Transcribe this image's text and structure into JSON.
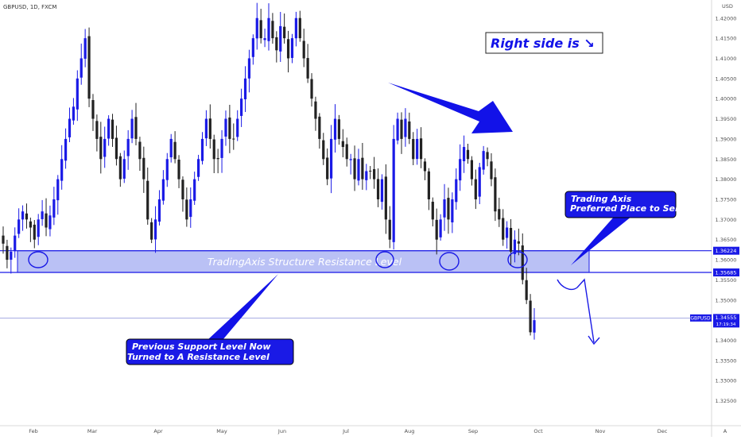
{
  "header": {
    "symbol_text": "GBPUSD, 1D, FXCM",
    "currency": "USD"
  },
  "chart_data": {
    "type": "candlestick",
    "title": "GBPUSD, 1D, FXCM",
    "y_axis": {
      "ylim": [
        1.319,
        1.4235
      ],
      "ticks": [
        "1.42000",
        "1.41500",
        "1.41000",
        "1.40500",
        "1.40000",
        "1.39500",
        "1.39000",
        "1.38500",
        "1.38000",
        "1.37500",
        "1.37000",
        "1.36500",
        "1.36000",
        "1.35500",
        "1.35000",
        "1.34500",
        "1.34000",
        "1.33500",
        "1.33000",
        "1.32500"
      ]
    },
    "x_axis": {
      "month_labels": [
        "Feb",
        "Mar",
        "Apr",
        "May",
        "Jun",
        "Jul",
        "Aug",
        "Sep",
        "Oct",
        "Nov",
        "Dec"
      ],
      "end_label": "A"
    },
    "price_series": [
      1.364,
      1.36,
      1.362,
      1.366,
      1.37,
      1.372,
      1.37,
      1.368,
      1.365,
      1.37,
      1.372,
      1.368,
      1.371,
      1.375,
      1.38,
      1.385,
      1.39,
      1.395,
      1.398,
      1.405,
      1.41,
      1.415,
      1.4,
      1.395,
      1.39,
      1.385,
      1.39,
      1.395,
      1.39,
      1.385,
      1.38,
      1.385,
      1.39,
      1.395,
      1.39,
      1.385,
      1.38,
      1.37,
      1.365,
      1.37,
      1.375,
      1.38,
      1.385,
      1.39,
      1.385,
      1.38,
      1.375,
      1.37,
      1.375,
      1.38,
      1.385,
      1.39,
      1.395,
      1.39,
      1.385,
      1.385,
      1.39,
      1.395,
      1.39,
      1.39,
      1.395,
      1.4,
      1.405,
      1.41,
      1.415,
      1.42,
      1.415,
      1.415,
      1.42,
      1.415,
      1.412,
      1.418,
      1.415,
      1.41,
      1.415,
      1.42,
      1.415,
      1.41,
      1.405,
      1.4,
      1.395,
      1.39,
      1.385,
      1.38,
      1.39,
      1.395,
      1.39,
      1.388,
      1.385,
      1.385,
      1.38,
      1.385,
      1.38,
      1.382,
      1.382,
      1.38,
      1.375,
      1.38,
      1.37,
      1.365,
      1.39,
      1.395,
      1.39,
      1.395,
      1.39,
      1.385,
      1.39,
      1.385,
      1.382,
      1.375,
      1.37,
      1.365,
      1.37,
      1.375,
      1.37,
      1.375,
      1.38,
      1.385,
      1.388,
      1.385,
      1.38,
      1.375,
      1.383,
      1.387,
      1.385,
      1.38,
      1.372,
      1.37,
      1.365,
      1.368,
      1.362,
      1.365,
      1.364,
      1.355,
      1.35,
      1.342,
      1.345
    ],
    "levels": [
      {
        "name": "upper_resistance",
        "value": 1.36224
      },
      {
        "name": "lower_support",
        "value": 1.35685
      },
      {
        "name": "last_price",
        "value": 1.34555
      }
    ],
    "price_labels": {
      "upper": "1.36224",
      "lower": "1.35685",
      "symbol": "GBPUSD",
      "last": "1.34555",
      "countdown": "17:19:34"
    }
  },
  "annotations": {
    "right_side": "Right side is ↘",
    "zone_label": "TradingAxis Structure Resistance Level",
    "callout_left_line1": "Previous Support Level Now",
    "callout_left_line2": "Turned to A Resistance Level",
    "callout_right_line1": "Trading Axis",
    "callout_right_line2": "Preferred Place to Sell",
    "colors": {
      "accent": "#1a1ae6",
      "zone_fill": "#a3acf2",
      "bull": "#1a1ae6",
      "bear": "#222222"
    }
  }
}
